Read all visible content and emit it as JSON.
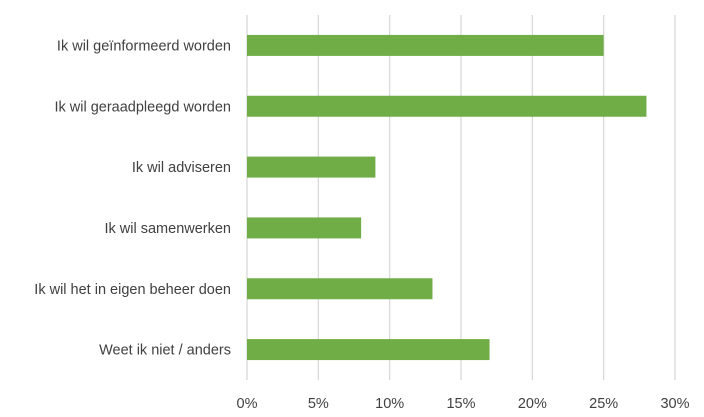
{
  "chart_data": {
    "type": "bar",
    "orientation": "horizontal",
    "title": "",
    "xlabel": "",
    "ylabel": "",
    "categories": [
      "Ik wil geïnformeerd worden",
      "Ik wil geraadpleegd worden",
      "Ik wil adviseren",
      "Ik wil samenwerken",
      "Ik wil het in eigen beheer doen",
      "Weet ik niet / anders"
    ],
    "values": [
      25,
      28,
      9,
      8,
      13,
      17
    ],
    "unit": "%",
    "xlim": [
      0,
      30
    ],
    "x_ticks": [
      "0%",
      "5%",
      "10%",
      "15%",
      "20%",
      "25%",
      "30%"
    ],
    "grid": "vertical",
    "legend": "none",
    "bar_color": "#70AD47",
    "grid_color": "#D9D9D9"
  }
}
